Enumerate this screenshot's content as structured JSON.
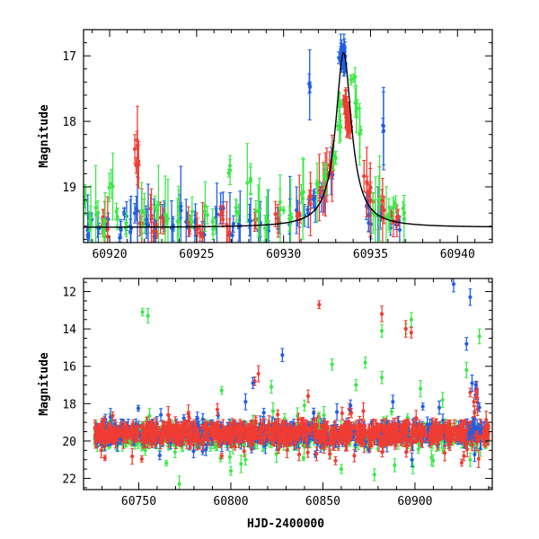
{
  "figure": {
    "x_axis_title": "HJD-2400000"
  },
  "colors": {
    "blue": "#1f5fe6",
    "red": "#f03c32",
    "green": "#3ee84a",
    "model": "#000000"
  },
  "chart_data": [
    {
      "type": "scatter",
      "panel": "top",
      "xlabel": "",
      "ylabel": "Magnitude",
      "xlim": [
        60918.5,
        60942
      ],
      "ylim": [
        19.85,
        16.6
      ],
      "y_inverted": true,
      "x_ticks": [
        60920,
        60925,
        60930,
        60935,
        60940
      ],
      "x_tick_labels": [
        "60920",
        "60925",
        "60930",
        "60935",
        "60940"
      ],
      "y_ticks": [
        17,
        18,
        19
      ],
      "y_tick_labels": [
        "17",
        "18",
        "19"
      ],
      "model_curve": {
        "baseline": 19.62,
        "peak_time": 60933.45,
        "peak_mag": 16.95,
        "tE": 0.55,
        "description_hidden": false
      },
      "series": [
        {
          "color_key": "blue",
          "points": [
            [
              60918.7,
              19.7
            ],
            [
              60918.9,
              19.55
            ],
            [
              60919.4,
              19.65
            ],
            [
              60919.8,
              19.5
            ],
            [
              60920.6,
              19.7
            ],
            [
              60920.9,
              19.45
            ],
            [
              60921.2,
              19.6
            ],
            [
              60921.5,
              19.35
            ],
            [
              60922.2,
              19.55
            ],
            [
              60922.6,
              19.7
            ],
            [
              60923.1,
              19.45
            ],
            [
              60923.6,
              19.65
            ],
            [
              60924.1,
              19.3
            ],
            [
              60924.5,
              19.6
            ],
            [
              60925.0,
              19.55
            ],
            [
              60925.4,
              19.7
            ],
            [
              60926.1,
              19.5
            ],
            [
              60926.5,
              19.35
            ],
            [
              60927.0,
              19.65
            ],
            [
              60927.4,
              19.55
            ],
            [
              60928.1,
              19.45
            ],
            [
              60928.6,
              19.6
            ],
            [
              60929.2,
              19.7
            ],
            [
              60929.7,
              19.55
            ],
            [
              60930.3,
              19.5
            ],
            [
              60930.8,
              19.4
            ],
            [
              60931.3,
              19.35
            ],
            [
              60931.4,
              17.45
            ],
            [
              60931.8,
              19.25
            ],
            [
              60932.3,
              19.1
            ],
            [
              60932.8,
              18.8
            ],
            [
              60933.3,
              17.05
            ],
            [
              60933.35,
              16.95
            ],
            [
              60933.4,
              16.92
            ],
            [
              60933.45,
              16.98
            ],
            [
              60933.5,
              17.1
            ],
            [
              60933.42,
              17.0
            ],
            [
              60935.8,
              18.15
            ],
            [
              60935.5,
              19.45
            ],
            [
              60936.1,
              19.55
            ],
            [
              60936.6,
              19.6
            ],
            [
              60934.8,
              19.3
            ],
            [
              60935.0,
              19.5
            ]
          ]
        },
        {
          "color_key": "red",
          "points": [
            [
              60919.6,
              19.55
            ],
            [
              60919.8,
              19.7
            ],
            [
              60921.5,
              18.35
            ],
            [
              60921.6,
              18.7
            ],
            [
              60921.8,
              19.6
            ],
            [
              60922.4,
              19.4
            ],
            [
              60922.6,
              19.65
            ],
            [
              60923.0,
              19.5
            ],
            [
              60924.5,
              19.55
            ],
            [
              60925.1,
              19.6
            ],
            [
              60925.3,
              19.7
            ],
            [
              60926.4,
              19.45
            ],
            [
              60926.8,
              19.65
            ],
            [
              60928.3,
              19.55
            ],
            [
              60929.6,
              19.5
            ],
            [
              60930.9,
              19.45
            ],
            [
              60931.6,
              19.2
            ],
            [
              60932.1,
              19.05
            ],
            [
              60932.4,
              18.95
            ],
            [
              60932.6,
              18.75
            ],
            [
              60932.8,
              18.7
            ],
            [
              60933.55,
              17.7
            ],
            [
              60933.6,
              17.75
            ],
            [
              60933.65,
              17.85
            ],
            [
              60933.7,
              17.95
            ],
            [
              60933.75,
              18.0
            ],
            [
              60933.8,
              18.1
            ],
            [
              60934.7,
              18.9
            ],
            [
              60934.9,
              19.05
            ],
            [
              60935.1,
              19.15
            ],
            [
              60935.6,
              19.25
            ],
            [
              60935.8,
              19.4
            ],
            [
              60936.2,
              19.45
            ],
            [
              60936.5,
              19.5
            ]
          ]
        },
        {
          "color_key": "green",
          "points": [
            [
              60918.6,
              19.2
            ],
            [
              60918.8,
              19.55
            ],
            [
              60919.3,
              19.4
            ],
            [
              60919.7,
              19.6
            ],
            [
              60920.1,
              19.0
            ],
            [
              60920.4,
              19.45
            ],
            [
              60921.0,
              19.55
            ],
            [
              60921.9,
              19.4
            ],
            [
              60922.7,
              19.3
            ],
            [
              60923.3,
              19.5
            ],
            [
              60924.0,
              19.55
            ],
            [
              60924.7,
              19.45
            ],
            [
              60925.5,
              19.35
            ],
            [
              60926.0,
              19.6
            ],
            [
              60926.9,
              18.75
            ],
            [
              60927.3,
              19.35
            ],
            [
              60928.0,
              18.95
            ],
            [
              60928.5,
              19.4
            ],
            [
              60929.0,
              19.55
            ],
            [
              60929.9,
              19.3
            ],
            [
              60930.4,
              19.5
            ],
            [
              60931.1,
              19.15
            ],
            [
              60931.9,
              19.0
            ],
            [
              60932.4,
              18.85
            ],
            [
              60932.9,
              18.55
            ],
            [
              60933.2,
              18.1
            ],
            [
              60933.3,
              17.75
            ],
            [
              60934.0,
              17.35
            ],
            [
              60934.2,
              17.8
            ],
            [
              60934.4,
              18.2
            ],
            [
              60935.2,
              19.35
            ],
            [
              60935.4,
              19.2
            ],
            [
              60936.0,
              19.45
            ],
            [
              60936.4,
              19.3
            ],
            [
              60936.9,
              19.4
            ]
          ]
        }
      ]
    },
    {
      "type": "scatter",
      "panel": "bottom",
      "xlabel": "HJD-2400000",
      "ylabel": "Magnitude",
      "xlim": [
        60720,
        60942
      ],
      "ylim": [
        22.6,
        11.3
      ],
      "y_inverted": true,
      "x_ticks": [
        60750,
        60800,
        60850,
        60900
      ],
      "x_tick_labels": [
        "60750",
        "60800",
        "60850",
        "60900"
      ],
      "y_ticks": [
        12,
        14,
        16,
        18,
        20,
        22
      ],
      "y_tick_labels": [
        "12",
        "14",
        "16",
        "18",
        "20",
        "22"
      ],
      "baseline_band": {
        "x_start": 60726,
        "x_end": 60940,
        "center": 19.6
      },
      "series": [
        {
          "color_key": "green",
          "outliers": [
            [
              60752,
              13.1
            ],
            [
              60755,
              13.3
            ],
            [
              60772,
              22.3
            ],
            [
              60795,
              17.3
            ],
            [
              60800,
              21.6
            ],
            [
              60808,
              21.0
            ],
            [
              60822,
              17.1
            ],
            [
              60840,
              18.1
            ],
            [
              60848,
              18.9
            ],
            [
              60855,
              15.9
            ],
            [
              60860,
              21.5
            ],
            [
              60868,
              17.0
            ],
            [
              60873,
              15.8
            ],
            [
              60878,
              21.8
            ],
            [
              60882,
              14.1
            ],
            [
              60882,
              16.6
            ],
            [
              60889,
              21.3
            ],
            [
              60895,
              14.0
            ],
            [
              60898,
              13.5
            ],
            [
              60903,
              17.2
            ],
            [
              60909,
              20.9
            ],
            [
              60915,
              17.8
            ],
            [
              60928,
              16.2
            ],
            [
              60935,
              14.4
            ],
            [
              60930,
              21.0
            ]
          ]
        },
        {
          "color_key": "red",
          "outliers": [
            [
              60766,
              18.6
            ],
            [
              60800,
              20.1
            ],
            [
              60813,
              16.8
            ],
            [
              60815,
              16.4
            ],
            [
              60842,
              17.6
            ],
            [
              60848,
              12.7
            ],
            [
              60872,
              18.4
            ],
            [
              60882,
              13.2
            ],
            [
              60895,
              14.0
            ],
            [
              60898,
              14.2
            ],
            [
              60930,
              17.4
            ],
            [
              60932,
              17.9
            ],
            [
              60934,
              18.3
            ]
          ]
        },
        {
          "color_key": "blue",
          "outliers": [
            [
              60762,
              18.6
            ],
            [
              60808,
              17.9
            ],
            [
              60812,
              16.9
            ],
            [
              60828,
              15.4
            ],
            [
              60845,
              18.5
            ],
            [
              60865,
              18.1
            ],
            [
              60888,
              17.9
            ],
            [
              60921,
              11.6
            ],
            [
              60928,
              14.8
            ],
            [
              60930,
              12.3
            ],
            [
              60931,
              16.9
            ],
            [
              60933,
              17.0
            ],
            [
              60935,
              18.2
            ]
          ]
        }
      ]
    }
  ]
}
